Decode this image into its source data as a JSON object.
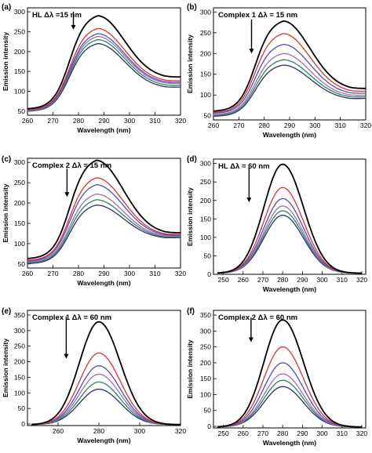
{
  "figure": {
    "series_colors": [
      "#000000",
      "#e0312b",
      "#4a4ec4",
      "#a46bb8",
      "#2a8a4e",
      "#2a2f7a"
    ]
  },
  "chart_data": [
    {
      "panel_label": "(a)",
      "annotation": "HL Δλ =15 nm",
      "type": "line",
      "xlabel": "Wavelength (nm)",
      "ylabel": "Emission intensity",
      "xlim": [
        260,
        320
      ],
      "ylim": [
        40,
        310
      ],
      "xticks": [
        260,
        270,
        280,
        290,
        300,
        310,
        320
      ],
      "yticks": [
        50,
        100,
        150,
        200,
        250,
        300
      ],
      "arrow": {
        "x": 278,
        "y_top": 300,
        "y_bottom": 255
      },
      "curve": {
        "kind": "sync15",
        "x_start": 260,
        "x_end": 320
      },
      "series": [
        {
          "peak_x": 287.5,
          "peak_y": 290,
          "start_y": 55,
          "end_y": 142
        },
        {
          "peak_x": 287.5,
          "peak_y": 258,
          "start_y": 53,
          "end_y": 132
        },
        {
          "peak_x": 287.5,
          "peak_y": 245,
          "start_y": 52,
          "end_y": 128
        },
        {
          "peak_x": 287.5,
          "peak_y": 238,
          "start_y": 51,
          "end_y": 125
        },
        {
          "peak_x": 287.5,
          "peak_y": 230,
          "start_y": 50,
          "end_y": 120
        },
        {
          "peak_x": 287.5,
          "peak_y": 220,
          "start_y": 49,
          "end_y": 115
        }
      ]
    },
    {
      "panel_label": "(b)",
      "annotation": "Complex 1 Δλ = 15 nm",
      "type": "line",
      "xlabel": "Wavelength (nm)",
      "ylabel": "Emission intensity",
      "xlim": [
        260,
        320
      ],
      "ylim": [
        40,
        310
      ],
      "xticks": [
        260,
        270,
        280,
        290,
        300,
        310,
        320
      ],
      "yticks": [
        50,
        100,
        150,
        200,
        250,
        300
      ],
      "arrow": {
        "x": 275,
        "y_top": 282,
        "y_bottom": 200
      },
      "curve": {
        "kind": "sync15",
        "x_start": 260,
        "x_end": 320
      },
      "series": [
        {
          "peak_x": 287.5,
          "peak_y": 278,
          "start_y": 60,
          "end_y": 120
        },
        {
          "peak_x": 287.5,
          "peak_y": 248,
          "start_y": 57,
          "end_y": 113
        },
        {
          "peak_x": 287.5,
          "peak_y": 222,
          "start_y": 55,
          "end_y": 108
        },
        {
          "peak_x": 287.5,
          "peak_y": 200,
          "start_y": 52,
          "end_y": 103
        },
        {
          "peak_x": 287.5,
          "peak_y": 185,
          "start_y": 50,
          "end_y": 99
        },
        {
          "peak_x": 287.5,
          "peak_y": 172,
          "start_y": 48,
          "end_y": 95
        }
      ]
    },
    {
      "panel_label": "(c)",
      "annotation": "Complex 2 Δλ = 15 nm",
      "type": "line",
      "xlabel": "Wavelength (nm)",
      "ylabel": "Emission intensity",
      "xlim": [
        260,
        320
      ],
      "ylim": [
        40,
        310
      ],
      "xticks": [
        260,
        270,
        280,
        290,
        300,
        310,
        320
      ],
      "yticks": [
        50,
        100,
        150,
        200,
        250,
        300
      ],
      "arrow": {
        "x": 275.5,
        "y_top": 285,
        "y_bottom": 215
      },
      "curve": {
        "kind": "sync15",
        "x_start": 260,
        "x_end": 320
      },
      "series": [
        {
          "peak_x": 287,
          "peak_y": 305,
          "start_y": 62,
          "end_y": 132
        },
        {
          "peak_x": 287,
          "peak_y": 262,
          "start_y": 58,
          "end_y": 128
        },
        {
          "peak_x": 287,
          "peak_y": 245,
          "start_y": 56,
          "end_y": 126
        },
        {
          "peak_x": 287,
          "peak_y": 222,
          "start_y": 54,
          "end_y": 124
        },
        {
          "peak_x": 287,
          "peak_y": 208,
          "start_y": 52,
          "end_y": 122
        },
        {
          "peak_x": 287,
          "peak_y": 195,
          "start_y": 50,
          "end_y": 120
        }
      ]
    },
    {
      "panel_label": "(d)",
      "annotation": "HL Δλ = 60 nm",
      "type": "line",
      "xlabel": "Wavelength (nm)",
      "ylabel": "Emission intensity",
      "xlim": [
        245,
        322
      ],
      "ylim": [
        0,
        312
      ],
      "xticks": [
        250,
        260,
        270,
        280,
        290,
        300,
        310,
        320
      ],
      "yticks": [
        0,
        50,
        100,
        150,
        200,
        250,
        300
      ],
      "arrow": {
        "x": 263,
        "y_top": 290,
        "y_bottom": 195
      },
      "curve": {
        "kind": "gauss",
        "x_start": 247,
        "x_end": 320
      },
      "series": [
        {
          "peak_x": 280,
          "peak_y": 298
        },
        {
          "peak_x": 280,
          "peak_y": 235
        },
        {
          "peak_x": 280,
          "peak_y": 205
        },
        {
          "peak_x": 280,
          "peak_y": 185
        },
        {
          "peak_x": 280,
          "peak_y": 172
        },
        {
          "peak_x": 280,
          "peak_y": 160
        }
      ]
    },
    {
      "panel_label": "(e)",
      "annotation": "Complex 1 Δλ = 60 nm",
      "type": "line",
      "xlabel": "Wavelength (nm)",
      "ylabel": "Emission intensity",
      "xlim": [
        245,
        320
      ],
      "ylim": [
        -5,
        365
      ],
      "xticks": [
        260,
        280,
        300,
        320
      ],
      "yticks": [
        0,
        50,
        100,
        150,
        200,
        250,
        300,
        350
      ],
      "arrow": {
        "x": 264,
        "y_top": 345,
        "y_bottom": 210
      },
      "curve": {
        "kind": "gauss",
        "x_start": 247,
        "x_end": 320
      },
      "series": [
        {
          "peak_x": 280,
          "peak_y": 328
        },
        {
          "peak_x": 280,
          "peak_y": 228
        },
        {
          "peak_x": 280,
          "peak_y": 187
        },
        {
          "peak_x": 280,
          "peak_y": 160
        },
        {
          "peak_x": 280,
          "peak_y": 135
        },
        {
          "peak_x": 280,
          "peak_y": 112
        }
      ]
    },
    {
      "panel_label": "(f)",
      "annotation": "Complex 2 Δλ = 60 nm",
      "type": "line",
      "xlabel": "Wavelength (nm)",
      "ylabel": "Emission intensity",
      "xlim": [
        245,
        322
      ],
      "ylim": [
        -5,
        365
      ],
      "xticks": [
        250,
        260,
        270,
        280,
        290,
        300,
        310,
        320
      ],
      "yticks": [
        0,
        50,
        100,
        150,
        200,
        250,
        300,
        350
      ],
      "arrow": {
        "x": 264,
        "y_top": 342,
        "y_bottom": 265
      },
      "curve": {
        "kind": "gauss",
        "x_start": 247,
        "x_end": 320
      },
      "series": [
        {
          "peak_x": 280,
          "peak_y": 335
        },
        {
          "peak_x": 280,
          "peak_y": 250
        },
        {
          "peak_x": 280,
          "peak_y": 200
        },
        {
          "peak_x": 280,
          "peak_y": 165
        },
        {
          "peak_x": 280,
          "peak_y": 145
        },
        {
          "peak_x": 280,
          "peak_y": 125
        }
      ]
    }
  ]
}
